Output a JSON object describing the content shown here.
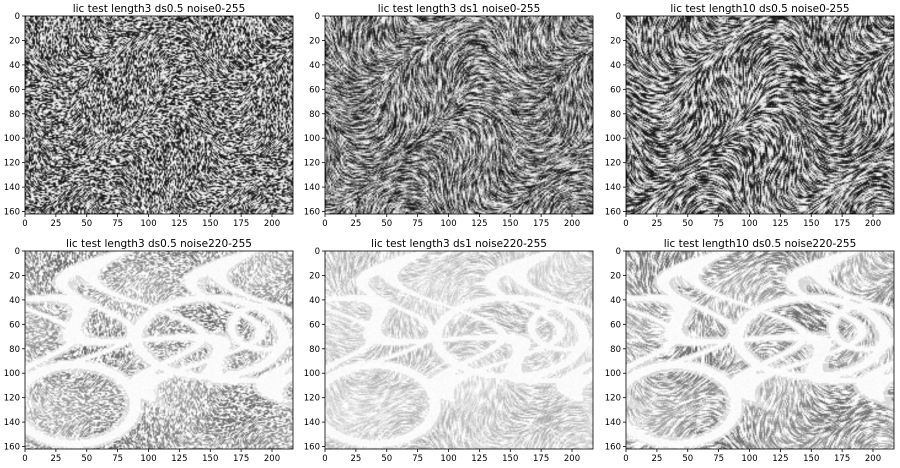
{
  "panels": [
    {
      "title": "lic test length3 ds0.5 noise0-255",
      "noise_min": 0,
      "noise_max": 255,
      "length": 3,
      "ds": 0.5
    },
    {
      "title": "lic test length3 ds1 noise0-255",
      "noise_min": 0,
      "noise_max": 255,
      "length": 3,
      "ds": 1
    },
    {
      "title": "lic test length10 ds0.5 noise0-255",
      "noise_min": 0,
      "noise_max": 255,
      "length": 10,
      "ds": 0.5
    },
    {
      "title": "lic test length3 ds0.5 noise220-255",
      "noise_min": 220,
      "noise_max": 255,
      "length": 3,
      "ds": 0.5
    },
    {
      "title": "lic test length3 ds1 noise220-255",
      "noise_min": 220,
      "noise_max": 255,
      "length": 3,
      "ds": 1
    },
    {
      "title": "lic test length10 ds0.5 noise220-255",
      "noise_min": 220,
      "noise_max": 255,
      "length": 10,
      "ds": 0.5
    }
  ],
  "axes": {
    "x_ticks": [
      "0",
      "25",
      "50",
      "75",
      "100",
      "125",
      "150",
      "175",
      "200"
    ],
    "x_values": [
      0,
      25,
      50,
      75,
      100,
      125,
      150,
      175,
      200
    ],
    "y_ticks": [
      "0",
      "20",
      "40",
      "60",
      "80",
      "100",
      "120",
      "140",
      "160"
    ],
    "y_values": [
      0,
      20,
      40,
      60,
      80,
      100,
      120,
      140,
      160
    ],
    "x_range": [
      0,
      217
    ],
    "y_range": [
      0,
      162
    ]
  },
  "colors": {
    "background": "#ffffff",
    "axis": "#000000",
    "text": "#000000"
  }
}
